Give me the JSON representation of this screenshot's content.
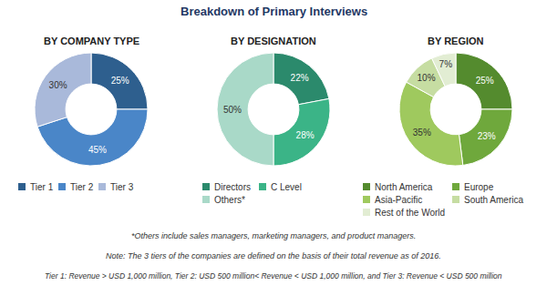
{
  "title": "Breakdown of Primary Interviews",
  "chart_data": [
    {
      "type": "pie",
      "title": "BY COMPANY TYPE",
      "categories": [
        "Tier 1",
        "Tier 2",
        "Tier 3"
      ],
      "values": [
        25,
        45,
        30
      ],
      "value_labels": [
        "25%",
        "45%",
        "30%"
      ],
      "colors": [
        "#2e5f8e",
        "#4a86c8",
        "#a9b9da"
      ],
      "data_labels": true
    },
    {
      "type": "pie",
      "title": "BY DESIGNATION",
      "categories": [
        "Directors",
        "C Level",
        "Others*"
      ],
      "values": [
        22,
        28,
        50
      ],
      "value_labels": [
        "22%",
        "28%",
        "50%"
      ],
      "colors": [
        "#2b8a6c",
        "#3bb487",
        "#a9d9c8"
      ],
      "data_labels": true
    },
    {
      "type": "pie",
      "title": "BY REGION",
      "categories": [
        "North America",
        "Europe",
        "Asia-Pacific",
        "South America",
        "Rest of the World"
      ],
      "values": [
        25,
        23,
        35,
        10,
        7
      ],
      "value_labels": [
        "25%",
        "23%",
        "35%",
        "10%",
        "7%"
      ],
      "colors": [
        "#548b2e",
        "#6fa83c",
        "#9fc95e",
        "#c6dda2",
        "#e2edd3"
      ],
      "data_labels": true
    }
  ],
  "notes": [
    "*Others include sales managers, marketing managers, and product managers.",
    "Note: The 3 tiers of the companies are defined on the basis of their total revenue as of 2016.",
    "Tier 1: Revenue > USD 1,000 million, Tier 2: USD 500 million< Revenue < USD 1,000 million, and Tier 3: Revenue < USD 500 million"
  ]
}
